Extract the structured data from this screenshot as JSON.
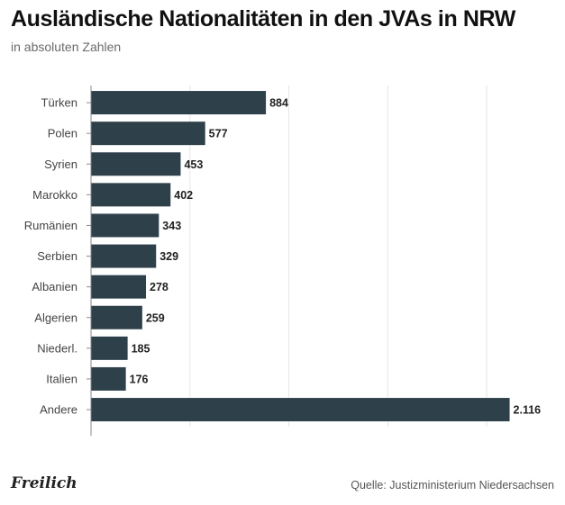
{
  "header": {
    "title": "Ausländische Nationalitäten in den JVAs in NRW",
    "subtitle": "in absoluten Zahlen"
  },
  "footer": {
    "logo": "Freilich",
    "source": "Quelle: Justizministerium Niedersachsen"
  },
  "colors": {
    "bar": "#2e414b",
    "grid": "#e6e6e6",
    "axis": "#888888",
    "label": "#444444",
    "value": "#222222"
  },
  "chart_data": {
    "type": "bar",
    "orientation": "horizontal",
    "title": "Ausländische Nationalitäten in den JVAs in NRW",
    "subtitle": "in absoluten Zahlen",
    "categories": [
      "Türken",
      "Polen",
      "Syrien",
      "Marokko",
      "Rumänien",
      "Serbien",
      "Albanien",
      "Algerien",
      "Niederl.",
      "Italien",
      "Andere"
    ],
    "values": [
      884,
      577,
      453,
      402,
      343,
      329,
      278,
      259,
      185,
      176,
      2116
    ],
    "value_labels": [
      "884",
      "577",
      "453",
      "402",
      "343",
      "329",
      "278",
      "259",
      "185",
      "176",
      "2.116"
    ],
    "xlim": [
      0,
      2200
    ],
    "grid": true,
    "legend": "none"
  }
}
